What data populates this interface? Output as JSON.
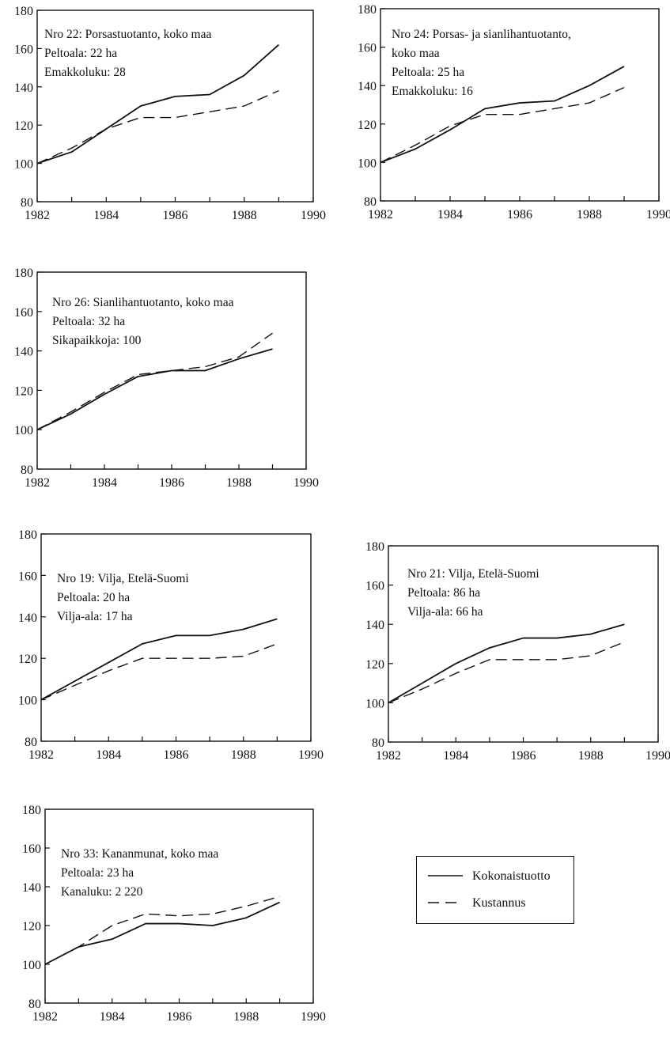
{
  "chart_data": [
    {
      "type": "line",
      "annotation": [
        "Nro 22: Porsastuotanto, koko maa",
        "Peltoala: 22 ha",
        "Emakkoluku: 28"
      ],
      "x": [
        1982,
        1983,
        1984,
        1985,
        1986,
        1987,
        1988,
        1989
      ],
      "xlim": [
        1982,
        1990
      ],
      "ylim": [
        80,
        180
      ],
      "xticks": [
        "1982",
        "1984",
        "1986",
        "1988",
        "1990"
      ],
      "yticks": [
        "80",
        "100",
        "120",
        "140",
        "160",
        "180"
      ],
      "series": [
        {
          "name": "Kokonaistuotto",
          "style": "solid",
          "values": [
            100,
            106,
            118,
            130,
            135,
            136,
            146,
            162
          ]
        },
        {
          "name": "Kustannus",
          "style": "dashed",
          "values": [
            100,
            108,
            118,
            124,
            124,
            127,
            130,
            138
          ]
        }
      ]
    },
    {
      "type": "line",
      "annotation": [
        "Nro 24: Porsas- ja sianlihantuotanto,",
        "koko maa",
        "Peltoala: 25 ha",
        "Emakkoluku: 16"
      ],
      "x": [
        1982,
        1983,
        1984,
        1985,
        1986,
        1987,
        1988,
        1989
      ],
      "xlim": [
        1982,
        1990
      ],
      "ylim": [
        80,
        180
      ],
      "xticks": [
        "1982",
        "1984",
        "1986",
        "1988",
        "1990"
      ],
      "yticks": [
        "80",
        "100",
        "120",
        "140",
        "160",
        "180"
      ],
      "series": [
        {
          "name": "Kokonaistuotto",
          "style": "solid",
          "values": [
            100,
            107,
            117,
            128,
            131,
            132,
            140,
            150
          ]
        },
        {
          "name": "Kustannus",
          "style": "dashed",
          "values": [
            100,
            109,
            119,
            125,
            125,
            128,
            131,
            139
          ]
        }
      ]
    },
    {
      "type": "line",
      "annotation": [
        "Nro 26: Sianlihantuotanto, koko maa",
        "Peltoala: 32 ha",
        "Sikapaikkoja: 100"
      ],
      "x": [
        1982,
        1983,
        1984,
        1985,
        1986,
        1987,
        1988,
        1989
      ],
      "xlim": [
        1982,
        1990
      ],
      "ylim": [
        80,
        180
      ],
      "xticks": [
        "1982",
        "1984",
        "1986",
        "1988",
        "1990"
      ],
      "yticks": [
        "80",
        "100",
        "120",
        "140",
        "160",
        "180"
      ],
      "series": [
        {
          "name": "Kokonaistuotto",
          "style": "solid",
          "values": [
            100,
            108,
            118,
            127,
            130,
            130,
            136,
            141
          ]
        },
        {
          "name": "Kustannus",
          "style": "dashed",
          "values": [
            100,
            109,
            119,
            128,
            130,
            132,
            137,
            149
          ]
        }
      ]
    },
    {
      "type": "line",
      "annotation": [
        "Nro 19: Vilja, Etelä-Suomi",
        "Peltoala:  20 ha",
        "Vilja-ala: 17 ha"
      ],
      "x": [
        1982,
        1983,
        1984,
        1985,
        1986,
        1987,
        1988,
        1989
      ],
      "xlim": [
        1982,
        1990
      ],
      "ylim": [
        80,
        180
      ],
      "xticks": [
        "1982",
        "1984",
        "1986",
        "1988",
        "1990"
      ],
      "yticks": [
        "80",
        "100",
        "120",
        "140",
        "160",
        "180"
      ],
      "series": [
        {
          "name": "Kokonaistuotto",
          "style": "solid",
          "values": [
            100,
            109,
            118,
            127,
            131,
            131,
            134,
            139
          ]
        },
        {
          "name": "Kustannus",
          "style": "dashed",
          "values": [
            100,
            107,
            114,
            120,
            120,
            120,
            121,
            127
          ]
        }
      ]
    },
    {
      "type": "line",
      "annotation": [
        "Nro 21: Vilja, Etelä-Suomi",
        "Peltoala:  86 ha",
        "Vilja-ala: 66 ha"
      ],
      "x": [
        1982,
        1983,
        1984,
        1985,
        1986,
        1987,
        1988,
        1989
      ],
      "xlim": [
        1982,
        1990
      ],
      "ylim": [
        80,
        180
      ],
      "xticks": [
        "1982",
        "1984",
        "1986",
        "1988",
        "1990"
      ],
      "yticks": [
        "80",
        "100",
        "120",
        "140",
        "160",
        "180"
      ],
      "series": [
        {
          "name": "Kokonaistuotto",
          "style": "solid",
          "values": [
            100,
            110,
            120,
            128,
            133,
            133,
            135,
            140
          ]
        },
        {
          "name": "Kustannus",
          "style": "dashed",
          "values": [
            100,
            107,
            115,
            122,
            122,
            122,
            124,
            131
          ]
        }
      ]
    },
    {
      "type": "line",
      "annotation": [
        "Nro 33: Kananmunat, koko maa",
        "Peltoala: 23 ha",
        "Kanaluku: 2 220"
      ],
      "x": [
        1982,
        1983,
        1984,
        1985,
        1986,
        1987,
        1988,
        1989
      ],
      "xlim": [
        1982,
        1990
      ],
      "ylim": [
        80,
        180
      ],
      "xticks": [
        "1982",
        "1984",
        "1986",
        "1988",
        "1990"
      ],
      "yticks": [
        "80",
        "100",
        "120",
        "140",
        "160",
        "180"
      ],
      "series": [
        {
          "name": "Kokonaistuotto",
          "style": "solid",
          "values": [
            100,
            109,
            113,
            121,
            121,
            120,
            124,
            132
          ]
        },
        {
          "name": "Kustannus",
          "style": "dashed",
          "values": [
            100,
            109,
            120,
            126,
            125,
            126,
            130,
            135
          ]
        }
      ]
    }
  ],
  "legend": {
    "solid_label": "Kokonaistuotto",
    "dashed_label": "Kustannus"
  }
}
